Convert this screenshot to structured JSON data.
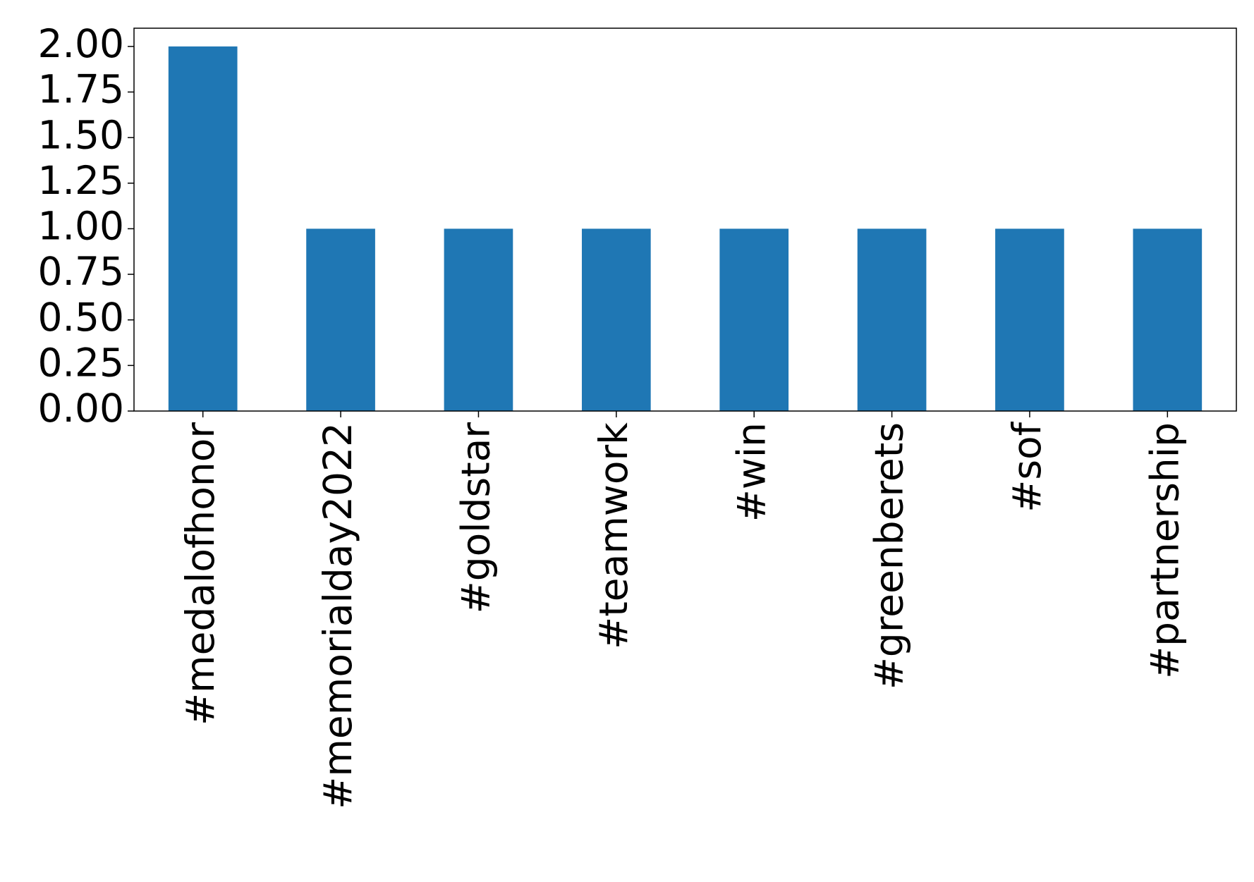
{
  "chart_data": {
    "type": "bar",
    "categories": [
      "#medalofhonor",
      "#memorialday2022",
      "#goldstar",
      "#teamwork",
      "#win",
      "#greenberets",
      "#sof",
      "#partnership"
    ],
    "values": [
      2,
      1,
      1,
      1,
      1,
      1,
      1,
      1
    ],
    "color": "#1f77b4",
    "ylim": [
      0,
      2.1
    ],
    "yticks": [
      {
        "value": 0,
        "label": "0.00"
      },
      {
        "value": 0.25,
        "label": "0.25"
      },
      {
        "value": 0.5,
        "label": "0.50"
      },
      {
        "value": 0.75,
        "label": "0.75"
      },
      {
        "value": 1,
        "label": "1.00"
      },
      {
        "value": 1.25,
        "label": "1.25"
      },
      {
        "value": 1.5,
        "label": "1.50"
      },
      {
        "value": 1.75,
        "label": "1.75"
      },
      {
        "value": 2,
        "label": "2.00"
      }
    ],
    "grid": false
  }
}
